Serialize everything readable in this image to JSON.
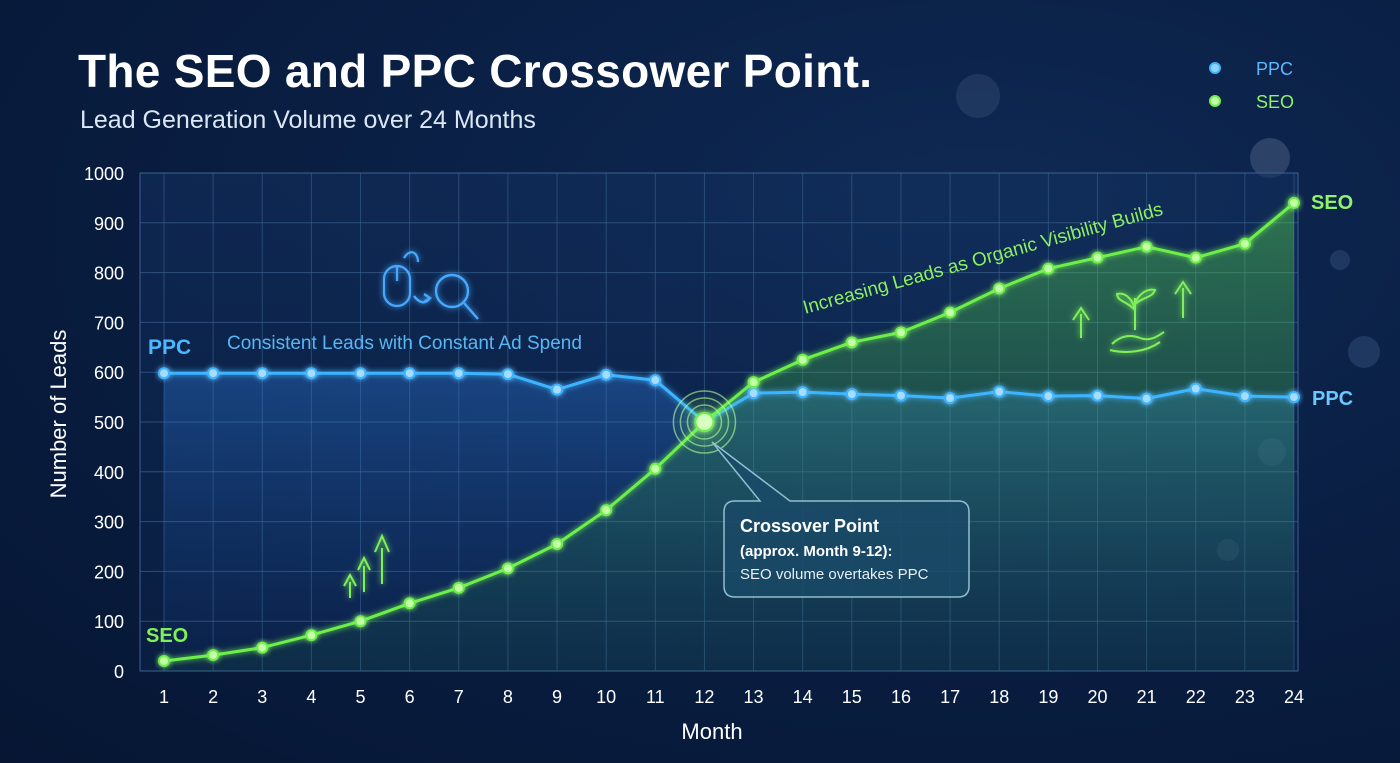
{
  "chart_data": {
    "type": "line",
    "title": "The SEO and PPC Crossower Point.",
    "subtitle": "Lead Generation Volume over 24 Months",
    "xlabel": "Month",
    "ylabel": "Number of Leads",
    "x": [
      1,
      2,
      3,
      4,
      5,
      6,
      7,
      8,
      9,
      10,
      11,
      12,
      13,
      14,
      15,
      16,
      17,
      18,
      19,
      20,
      21,
      22,
      23,
      24
    ],
    "ylim": [
      0,
      1000
    ],
    "yticks": [
      0,
      100,
      200,
      300,
      400,
      500,
      600,
      700,
      800,
      900,
      1000
    ],
    "grid": true,
    "legend_position": "top-right",
    "series": [
      {
        "name": "PPC",
        "color": "#3cb4ff",
        "values": [
          598,
          598,
          598,
          598,
          598,
          598,
          598,
          596,
          565,
          595,
          584,
          500,
          558,
          560,
          556,
          553,
          548,
          561,
          552,
          553,
          547,
          567,
          552,
          550
        ]
      },
      {
        "name": "SEO",
        "color": "#6cf04a",
        "values": [
          20,
          32,
          47,
          72,
          100,
          136,
          167,
          206,
          255,
          323,
          406,
          500,
          580,
          625,
          660,
          680,
          720,
          768,
          808,
          830,
          852,
          830,
          858,
          940
        ]
      }
    ],
    "annotations": {
      "ppc_start_label": "PPC",
      "ppc_end_label": "PPC",
      "seo_start_label": "SEO",
      "seo_end_label": "SEO",
      "ppc_note": "Consistent Leads with Constant Ad Spend",
      "seo_note": "Increasing Leads as Organic Visibility Builds",
      "crossover_title": "Crossover Point",
      "crossover_range": "(approx. Month 9-12):",
      "crossover_desc": "SEO volume overtakes PPC"
    }
  },
  "icons": [
    "mouse-icon",
    "magnifier-icon",
    "growth-arrows-icon",
    "up-arrow-icon",
    "plant-in-hand-icon"
  ]
}
